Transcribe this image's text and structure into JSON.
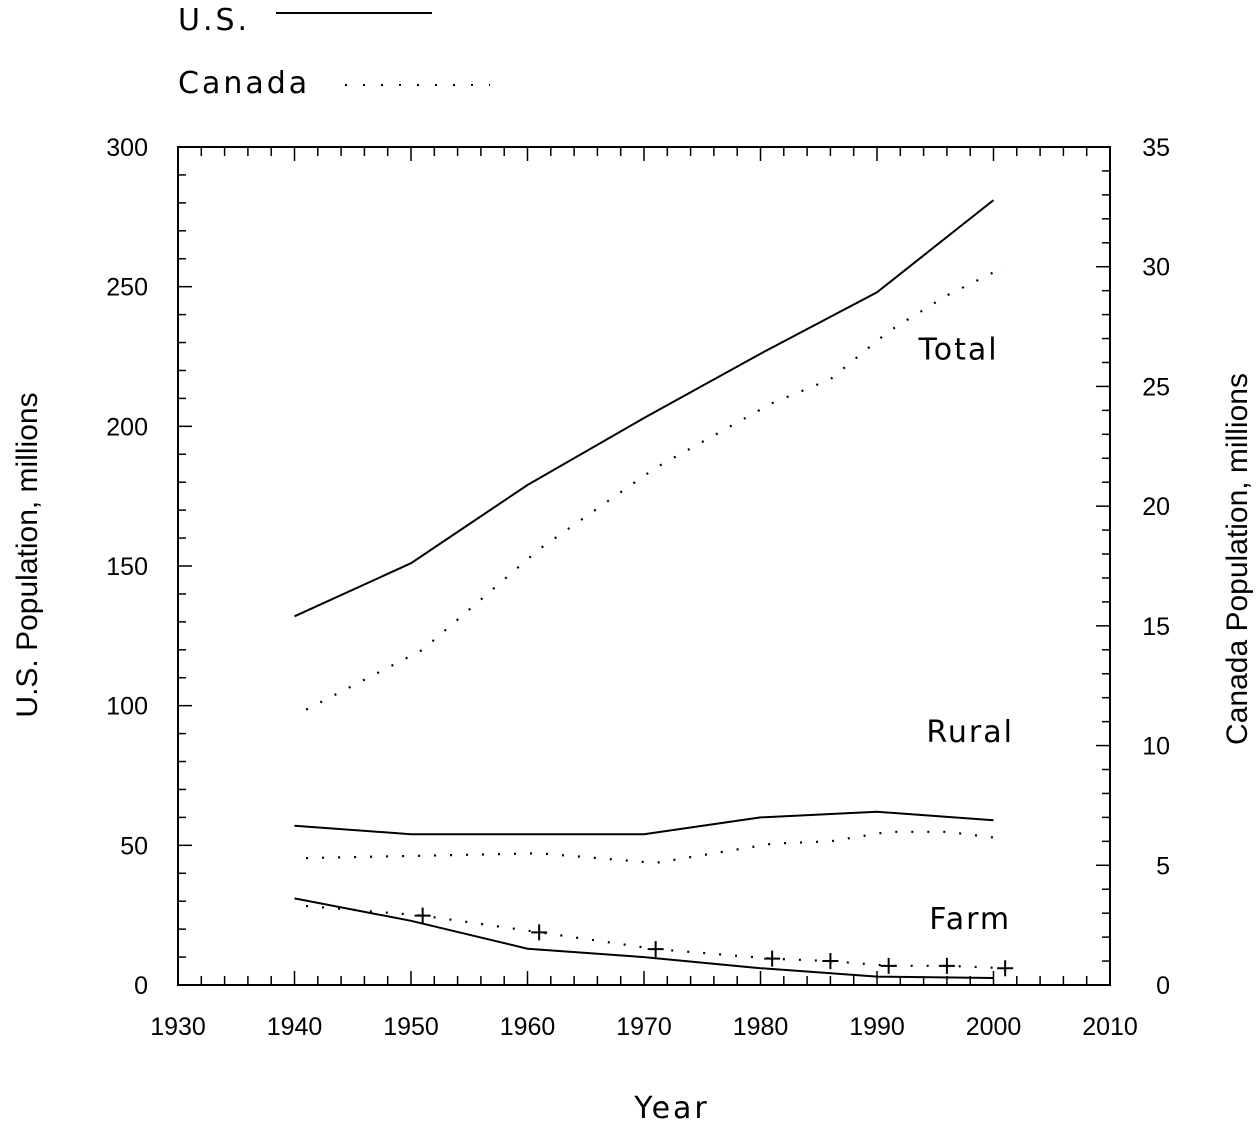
{
  "chart_data": {
    "type": "line",
    "xlabel": "Year",
    "ylabel_left": "U.S. Population, millions",
    "ylabel_right": "Canada Population, millions",
    "xlim": [
      1930,
      2010
    ],
    "ylim_left": [
      0,
      300
    ],
    "ylim_right": [
      0,
      35
    ],
    "x_ticks": [
      1930,
      1940,
      1950,
      1960,
      1970,
      1980,
      1990,
      2000,
      2010
    ],
    "y_ticks_left": [
      0,
      50,
      100,
      150,
      200,
      250,
      300
    ],
    "y_ticks_right": [
      0,
      5,
      10,
      15,
      20,
      25,
      30,
      35
    ],
    "grid": false,
    "legend": {
      "placement": "top-left",
      "entries": [
        {
          "label": "U.S.",
          "style": "solid"
        },
        {
          "label": "Canada",
          "style": "dotted"
        }
      ]
    },
    "annotations": [
      {
        "text": "Total",
        "x": 1997,
        "y": 224
      },
      {
        "text": "Rural",
        "x": 1998,
        "y": 87
      },
      {
        "text": "Farm",
        "x": 1998,
        "y": 20
      }
    ],
    "series": [
      {
        "country": "U.S.",
        "group": "Total",
        "axis": "left",
        "style": "solid",
        "x": [
          1940,
          1950,
          1960,
          1970,
          1980,
          1990,
          2000
        ],
        "y": [
          132,
          151,
          179,
          203,
          226,
          248,
          281
        ]
      },
      {
        "country": "Canada",
        "group": "Total",
        "axis": "right",
        "style": "dotted",
        "x": [
          1941,
          1951,
          1961,
          1971,
          1981,
          1986,
          1991,
          1996,
          2001
        ],
        "y": [
          11.5,
          14.0,
          18.2,
          21.6,
          24.3,
          25.3,
          27.3,
          28.8,
          30.0
        ]
      },
      {
        "country": "U.S.",
        "group": "Rural",
        "axis": "left",
        "style": "solid",
        "x": [
          1940,
          1950,
          1960,
          1970,
          1980,
          1990,
          2000
        ],
        "y": [
          57,
          54,
          54,
          54,
          60,
          62,
          59
        ]
      },
      {
        "country": "Canada",
        "group": "Rural",
        "axis": "right",
        "style": "dotted",
        "x": [
          1941,
          1951,
          1961,
          1971,
          1981,
          1986,
          1991,
          1996,
          2001
        ],
        "y": [
          5.3,
          5.4,
          5.5,
          5.1,
          5.9,
          6.0,
          6.4,
          6.4,
          6.1
        ]
      },
      {
        "country": "U.S.",
        "group": "Farm",
        "axis": "left",
        "style": "solid",
        "x": [
          1940,
          1950,
          1960,
          1970,
          1980,
          1990,
          2000
        ],
        "y": [
          31,
          23,
          13,
          10,
          6,
          3,
          2.5
        ]
      },
      {
        "country": "Canada",
        "group": "Farm",
        "axis": "right",
        "style": "dotted",
        "markers": "plus",
        "x": [
          1941,
          1951,
          1961,
          1971,
          1981,
          1986,
          1991,
          1996,
          2001
        ],
        "y": [
          3.3,
          2.9,
          2.2,
          1.5,
          1.1,
          1.0,
          0.8,
          0.8,
          0.7
        ]
      }
    ]
  }
}
